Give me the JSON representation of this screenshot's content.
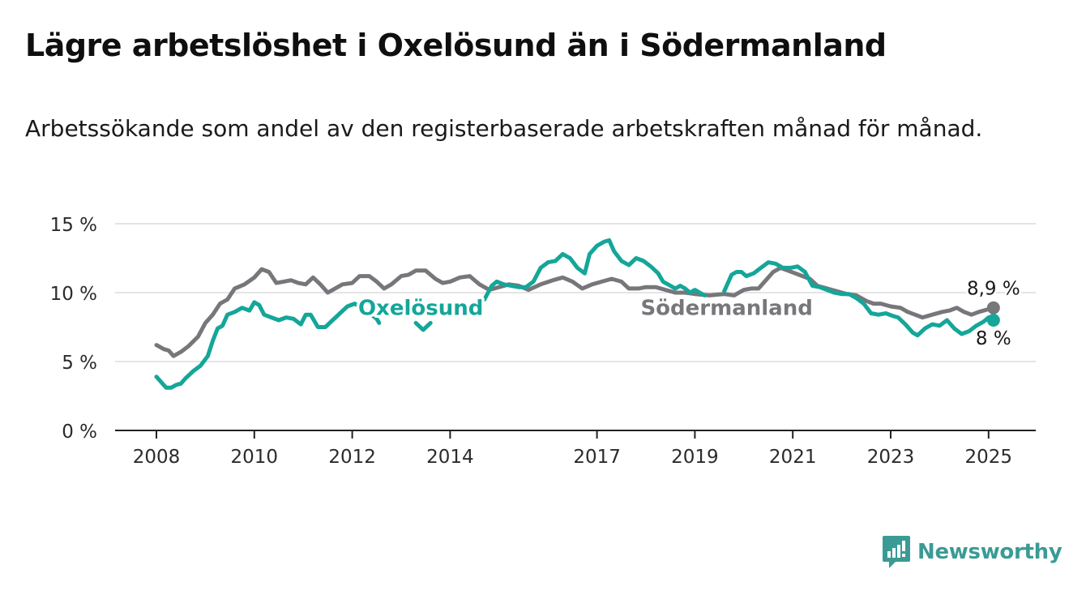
{
  "header": {
    "title": "Lägre arbetslöshet i Oxelösund än i Södermanland",
    "subtitle": "Arbetssökande som andel av den registerbaserade arbetskraften månad för månad."
  },
  "brand": {
    "name": "Newsworthy",
    "icon": "newsworthy-logo-icon",
    "color": "#3a9b94"
  },
  "chart_data": {
    "type": "line",
    "title": "Lägre arbetslöshet i Oxelösund än i Södermanland",
    "subtitle": "Arbetssökande som andel av den registerbaserade arbetskraften månad för månad.",
    "ylim": [
      0,
      15
    ],
    "xlim": [
      2008,
      2025.1
    ],
    "y_ticks": [
      0,
      5,
      10,
      15
    ],
    "y_tick_labels": [
      "0 %",
      "5 %",
      "10 %",
      "15 %"
    ],
    "x_ticks": [
      2008,
      2010,
      2012,
      2014,
      2017,
      2019,
      2021,
      2023,
      2025
    ],
    "x_tick_labels": [
      "2008",
      "2010",
      "2012",
      "2014",
      "2017",
      "2019",
      "2021",
      "2023",
      "2025"
    ],
    "grid": "horizontal",
    "series": [
      {
        "name": "Södermanland",
        "color": "#77767a",
        "end_label": "8,9 %",
        "points": [
          [
            2008.0,
            6.2
          ],
          [
            2008.15,
            5.9
          ],
          [
            2008.25,
            5.8
          ],
          [
            2008.35,
            5.4
          ],
          [
            2008.5,
            5.7
          ],
          [
            2008.65,
            6.1
          ],
          [
            2008.85,
            6.8
          ],
          [
            2009.0,
            7.8
          ],
          [
            2009.15,
            8.4
          ],
          [
            2009.3,
            9.2
          ],
          [
            2009.45,
            9.5
          ],
          [
            2009.6,
            10.3
          ],
          [
            2009.8,
            10.6
          ],
          [
            2010.0,
            11.1
          ],
          [
            2010.15,
            11.7
          ],
          [
            2010.3,
            11.5
          ],
          [
            2010.45,
            10.7
          ],
          [
            2010.6,
            10.8
          ],
          [
            2010.75,
            10.9
          ],
          [
            2010.9,
            10.7
          ],
          [
            2011.05,
            10.6
          ],
          [
            2011.2,
            11.1
          ],
          [
            2011.35,
            10.6
          ],
          [
            2011.5,
            10.0
          ],
          [
            2011.65,
            10.3
          ],
          [
            2011.8,
            10.6
          ],
          [
            2012.0,
            10.7
          ],
          [
            2012.15,
            11.2
          ],
          [
            2012.35,
            11.2
          ],
          [
            2012.5,
            10.8
          ],
          [
            2012.65,
            10.3
          ],
          [
            2012.8,
            10.6
          ],
          [
            2013.0,
            11.2
          ],
          [
            2013.15,
            11.3
          ],
          [
            2013.3,
            11.6
          ],
          [
            2013.5,
            11.6
          ],
          [
            2013.7,
            11.0
          ],
          [
            2013.85,
            10.7
          ],
          [
            2014.0,
            10.8
          ],
          [
            2014.2,
            11.1
          ],
          [
            2014.4,
            11.2
          ],
          [
            2014.6,
            10.6
          ],
          [
            2014.8,
            10.2
          ],
          [
            2015.0,
            10.4
          ],
          [
            2015.2,
            10.6
          ],
          [
            2015.4,
            10.5
          ],
          [
            2015.6,
            10.2
          ],
          [
            2015.85,
            10.6
          ],
          [
            2016.1,
            10.9
          ],
          [
            2016.3,
            11.1
          ],
          [
            2016.5,
            10.8
          ],
          [
            2016.7,
            10.3
          ],
          [
            2016.9,
            10.6
          ],
          [
            2017.1,
            10.8
          ],
          [
            2017.3,
            11.0
          ],
          [
            2017.5,
            10.8
          ],
          [
            2017.65,
            10.3
          ],
          [
            2017.85,
            10.3
          ],
          [
            2018.0,
            10.4
          ],
          [
            2018.2,
            10.4
          ],
          [
            2018.4,
            10.2
          ],
          [
            2018.6,
            10.0
          ],
          [
            2018.8,
            10.0
          ],
          [
            2019.0,
            9.9
          ],
          [
            2019.3,
            9.8
          ],
          [
            2019.6,
            9.9
          ],
          [
            2019.8,
            9.8
          ],
          [
            2020.0,
            10.2
          ],
          [
            2020.15,
            10.3
          ],
          [
            2020.3,
            10.3
          ],
          [
            2020.45,
            10.9
          ],
          [
            2020.6,
            11.5
          ],
          [
            2020.75,
            11.8
          ],
          [
            2020.9,
            11.6
          ],
          [
            2021.05,
            11.4
          ],
          [
            2021.2,
            11.2
          ],
          [
            2021.35,
            11.0
          ],
          [
            2021.5,
            10.5
          ],
          [
            2021.7,
            10.3
          ],
          [
            2021.9,
            10.1
          ],
          [
            2022.1,
            9.9
          ],
          [
            2022.3,
            9.8
          ],
          [
            2022.5,
            9.4
          ],
          [
            2022.65,
            9.2
          ],
          [
            2022.8,
            9.2
          ],
          [
            2023.0,
            9.0
          ],
          [
            2023.2,
            8.9
          ],
          [
            2023.35,
            8.6
          ],
          [
            2023.5,
            8.4
          ],
          [
            2023.65,
            8.2
          ],
          [
            2023.85,
            8.4
          ],
          [
            2024.05,
            8.6
          ],
          [
            2024.2,
            8.7
          ],
          [
            2024.35,
            8.9
          ],
          [
            2024.5,
            8.6
          ],
          [
            2024.65,
            8.4
          ],
          [
            2024.8,
            8.6
          ],
          [
            2025.0,
            8.8
          ],
          [
            2025.1,
            8.9
          ]
        ]
      },
      {
        "name": "Oxelösund",
        "color": "#14a699",
        "end_label": "8 %",
        "points": [
          [
            2008.0,
            3.9
          ],
          [
            2008.1,
            3.5
          ],
          [
            2008.2,
            3.1
          ],
          [
            2008.3,
            3.1
          ],
          [
            2008.4,
            3.3
          ],
          [
            2008.5,
            3.4
          ],
          [
            2008.6,
            3.8
          ],
          [
            2008.75,
            4.3
          ],
          [
            2008.9,
            4.7
          ],
          [
            2009.05,
            5.4
          ],
          [
            2009.15,
            6.5
          ],
          [
            2009.25,
            7.4
          ],
          [
            2009.35,
            7.6
          ],
          [
            2009.45,
            8.4
          ],
          [
            2009.6,
            8.6
          ],
          [
            2009.75,
            8.9
          ],
          [
            2009.9,
            8.7
          ],
          [
            2010.0,
            9.3
          ],
          [
            2010.1,
            9.1
          ],
          [
            2010.2,
            8.4
          ],
          [
            2010.35,
            8.2
          ],
          [
            2010.5,
            8.0
          ],
          [
            2010.65,
            8.2
          ],
          [
            2010.8,
            8.1
          ],
          [
            2010.95,
            7.7
          ],
          [
            2011.05,
            8.4
          ],
          [
            2011.15,
            8.4
          ],
          [
            2011.3,
            7.5
          ],
          [
            2011.45,
            7.5
          ],
          [
            2011.6,
            8.0
          ],
          [
            2011.75,
            8.5
          ],
          [
            2011.9,
            9.0
          ],
          [
            2012.05,
            9.2
          ],
          [
            2012.2,
            8.9
          ],
          [
            2012.35,
            8.5
          ],
          [
            2012.5,
            8.1
          ],
          [
            2012.55,
            7.8
          ],
          null,
          [
            2013.3,
            7.8
          ],
          [
            2013.45,
            7.3
          ],
          [
            2013.6,
            7.8
          ],
          null,
          [
            2014.7,
            9.5
          ],
          [
            2014.85,
            10.5
          ],
          [
            2014.95,
            10.8
          ],
          [
            2015.1,
            10.6
          ],
          [
            2015.25,
            10.5
          ],
          [
            2015.4,
            10.4
          ],
          [
            2015.55,
            10.4
          ],
          [
            2015.7,
            10.8
          ],
          [
            2015.85,
            11.8
          ],
          [
            2016.0,
            12.2
          ],
          [
            2016.15,
            12.3
          ],
          [
            2016.3,
            12.8
          ],
          [
            2016.45,
            12.5
          ],
          [
            2016.6,
            11.8
          ],
          [
            2016.75,
            11.4
          ],
          [
            2016.85,
            12.8
          ],
          [
            2017.0,
            13.4
          ],
          [
            2017.15,
            13.7
          ],
          [
            2017.25,
            13.8
          ],
          [
            2017.35,
            13.0
          ],
          [
            2017.5,
            12.3
          ],
          [
            2017.65,
            12.0
          ],
          [
            2017.8,
            12.5
          ],
          [
            2017.95,
            12.3
          ],
          [
            2018.1,
            11.9
          ],
          [
            2018.25,
            11.4
          ],
          [
            2018.35,
            10.8
          ],
          [
            2018.5,
            10.5
          ],
          [
            2018.6,
            10.3
          ],
          [
            2018.7,
            10.5
          ],
          [
            2018.8,
            10.3
          ],
          [
            2018.9,
            10.0
          ],
          [
            2019.0,
            10.2
          ],
          [
            2019.1,
            10.0
          ],
          [
            2019.2,
            9.8
          ],
          null,
          [
            2019.6,
            10.1
          ],
          [
            2019.75,
            11.3
          ],
          [
            2019.85,
            11.5
          ],
          [
            2019.95,
            11.5
          ],
          [
            2020.05,
            11.2
          ],
          [
            2020.2,
            11.4
          ],
          [
            2020.35,
            11.8
          ],
          [
            2020.5,
            12.2
          ],
          [
            2020.65,
            12.1
          ],
          [
            2020.8,
            11.8
          ],
          [
            2020.95,
            11.8
          ],
          [
            2021.1,
            11.9
          ],
          [
            2021.25,
            11.5
          ],
          [
            2021.4,
            10.5
          ],
          [
            2021.55,
            10.4
          ],
          [
            2021.7,
            10.2
          ],
          [
            2021.85,
            10.0
          ],
          [
            2022.0,
            9.9
          ],
          [
            2022.15,
            9.9
          ],
          [
            2022.3,
            9.6
          ],
          [
            2022.45,
            9.2
          ],
          [
            2022.6,
            8.5
          ],
          [
            2022.75,
            8.4
          ],
          [
            2022.9,
            8.5
          ],
          [
            2023.05,
            8.3
          ],
          [
            2023.15,
            8.2
          ],
          [
            2023.3,
            7.7
          ],
          [
            2023.45,
            7.1
          ],
          [
            2023.55,
            6.9
          ],
          [
            2023.7,
            7.4
          ],
          [
            2023.85,
            7.7
          ],
          [
            2024.0,
            7.6
          ],
          [
            2024.15,
            8.0
          ],
          [
            2024.3,
            7.4
          ],
          [
            2024.45,
            7.0
          ],
          [
            2024.6,
            7.2
          ],
          [
            2024.75,
            7.6
          ],
          [
            2024.9,
            7.9
          ],
          [
            2025.0,
            8.2
          ],
          [
            2025.1,
            8.0
          ]
        ]
      }
    ],
    "annotations": [
      {
        "text": "Oxelösund",
        "series": "Oxelösund",
        "at": [
          2013.4,
          8.9
        ]
      },
      {
        "text": "Södermanland",
        "series": "Södermanland",
        "at": [
          2019.65,
          8.9
        ]
      },
      {
        "text": "8,9 %",
        "series": "Södermanland",
        "at": [
          2025.1,
          8.9
        ]
      },
      {
        "text": "8 %",
        "series": "Oxelösund",
        "at": [
          2025.1,
          8.0
        ]
      }
    ]
  }
}
